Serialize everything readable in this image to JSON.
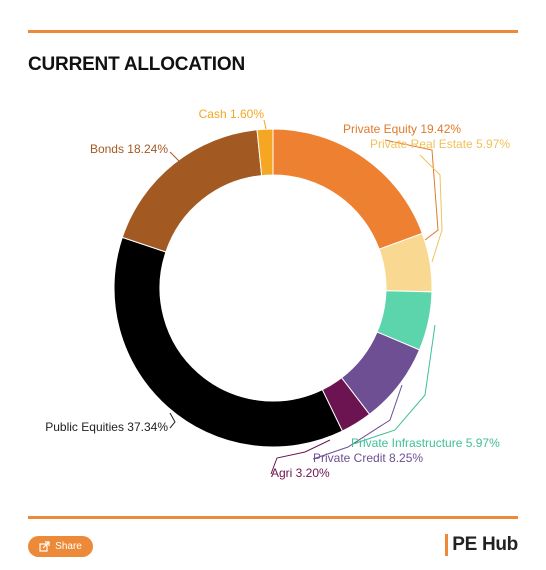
{
  "header": {
    "title": "CURRENT ALLOCATION"
  },
  "chart_data": {
    "type": "pie",
    "title": "CURRENT ALLOCATION",
    "slices": [
      {
        "label": "Private Equity 19.42%",
        "name": "Private Equity",
        "value": 19.42,
        "color": "#ed8131",
        "label_color": "#e07a2a"
      },
      {
        "label": "Private Real Estate 5.97%",
        "name": "Private Real Estate",
        "value": 5.97,
        "color": "#f9d992",
        "label_color": "#f2c15a"
      },
      {
        "label": "Private Infrastructure 5.97%",
        "name": "Private Infrastructure",
        "value": 5.97,
        "color": "#5cd5ad",
        "label_color": "#3fbf95"
      },
      {
        "label": "Private Credit 8.25%",
        "name": "Private Credit",
        "value": 8.25,
        "color": "#6e4f93",
        "label_color": "#6e4f93"
      },
      {
        "label": "Agri 3.20%",
        "name": "Agri",
        "value": 3.2,
        "color": "#6b1451",
        "label_color": "#6b1451"
      },
      {
        "label": "Public Equities 37.34%",
        "name": "Public Equities",
        "value": 37.34,
        "color": "#000000",
        "label_color": "#222222"
      },
      {
        "label": "Bonds 18.24%",
        "name": "Bonds",
        "value": 18.24,
        "color": "#a35a22",
        "label_color": "#a35a22"
      },
      {
        "label": "Cash 1.60%",
        "name": "Cash",
        "value": 1.6,
        "color": "#f5a623",
        "label_color": "#f5a623"
      }
    ]
  },
  "footer": {
    "share_label": "Share",
    "brand": "PE Hub",
    "brand_color": "#ec8a3a"
  }
}
